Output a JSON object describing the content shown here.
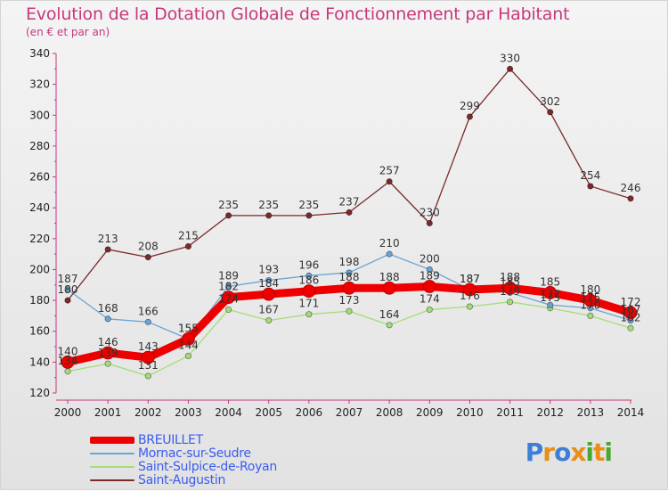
{
  "title": "Evolution de la Dotation Globale de Fonctionnement par Habitant",
  "subtitle": "(en € et par an)",
  "logo": {
    "letters": [
      "P",
      "r",
      "o",
      "x",
      "i",
      "t",
      "i"
    ]
  },
  "chart_data": {
    "type": "line",
    "x": [
      "2000",
      "2001",
      "2002",
      "2003",
      "2004",
      "2005",
      "2006",
      "2007",
      "2008",
      "2009",
      "2010",
      "2011",
      "2012",
      "2013",
      "2014"
    ],
    "ylim": [
      120,
      340
    ],
    "yticks": [
      120,
      140,
      160,
      180,
      200,
      220,
      240,
      260,
      280,
      300,
      320,
      340
    ],
    "grid": false,
    "legend_position": "bottom-left",
    "series": [
      {
        "name": "BREUILLET",
        "color": "#ee0000",
        "values": [
          140,
          146,
          143,
          155,
          182,
          184,
          186,
          188,
          188,
          189,
          187,
          188,
          185,
          180,
          172
        ]
      },
      {
        "name": "Mornac-sur-Seudre",
        "color": "#6aa3d6",
        "values": [
          187,
          168,
          166,
          155,
          189,
          193,
          196,
          198,
          210,
          200,
          187,
          185,
          177,
          175,
          167
        ]
      },
      {
        "name": "Saint-Sulpice-de-Royan",
        "color": "#a3dd78",
        "values": [
          134,
          139,
          131,
          144,
          174,
          167,
          171,
          173,
          164,
          174,
          176,
          179,
          175,
          170,
          162
        ]
      },
      {
        "name": "Saint-Augustin",
        "color": "#7a2a2a",
        "values": [
          180,
          213,
          208,
          215,
          235,
          235,
          235,
          237,
          257,
          230,
          299,
          330,
          302,
          254,
          246
        ]
      }
    ]
  }
}
